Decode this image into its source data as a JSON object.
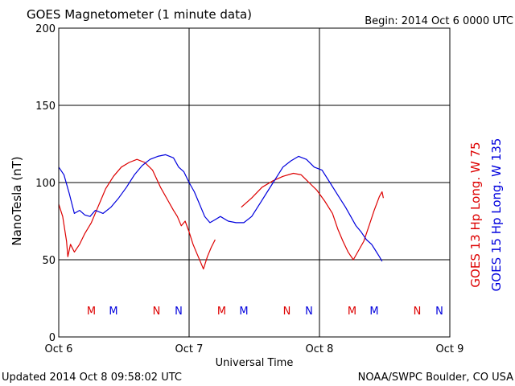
{
  "chart_data": {
    "type": "line",
    "title": "GOES Magnetometer (1 minute data)",
    "begin_label": "Begin:  2014 Oct 6 0000 UTC",
    "ylabel": "NanoTesla (nT)",
    "xlabel": "Universal Time",
    "ylim": [
      0,
      200
    ],
    "y_ticks": [
      "0",
      "50",
      "100",
      "150",
      "200"
    ],
    "xlim": [
      0,
      3
    ],
    "x_ticks": [
      "Oct 6",
      "Oct 7",
      "Oct 8",
      "Oct 9"
    ],
    "grid": true,
    "right_labels": [
      {
        "text": "GOES 13 Hp  Long. W 75",
        "color": "#dd0000"
      },
      {
        "text": "GOES 15 Hp  Long. W 135",
        "color": "#0000dd"
      }
    ],
    "series": [
      {
        "name": "GOES 13 Hp",
        "color": "#dd0000",
        "segments": [
          [
            [
              0.0,
              86
            ],
            [
              0.03,
              78
            ],
            [
              0.06,
              62
            ],
            [
              0.07,
              52
            ],
            [
              0.09,
              60
            ],
            [
              0.12,
              55
            ],
            [
              0.16,
              60
            ],
            [
              0.2,
              67
            ],
            [
              0.25,
              74
            ],
            [
              0.3,
              84
            ],
            [
              0.36,
              96
            ],
            [
              0.42,
              104
            ],
            [
              0.48,
              110
            ],
            [
              0.54,
              113
            ],
            [
              0.6,
              115
            ],
            [
              0.66,
              113
            ],
            [
              0.72,
              108
            ],
            [
              0.78,
              97
            ],
            [
              0.84,
              88
            ],
            [
              0.88,
              82
            ],
            [
              0.91,
              78
            ],
            [
              0.94,
              72
            ],
            [
              0.97,
              75
            ],
            [
              1.0,
              68
            ],
            [
              1.03,
              60
            ],
            [
              1.06,
              54
            ],
            [
              1.09,
              48
            ],
            [
              1.11,
              44
            ],
            [
              1.14,
              52
            ],
            [
              1.17,
              58
            ],
            [
              1.2,
              63
            ]
          ],
          [
            [
              1.4,
              84
            ],
            [
              1.48,
              90
            ],
            [
              1.56,
              97
            ],
            [
              1.64,
              101
            ],
            [
              1.72,
              104
            ],
            [
              1.8,
              106
            ],
            [
              1.86,
              105
            ],
            [
              1.92,
              100
            ],
            [
              1.98,
              95
            ],
            [
              2.04,
              88
            ],
            [
              2.1,
              80
            ],
            [
              2.14,
              70
            ],
            [
              2.18,
              62
            ],
            [
              2.22,
              55
            ],
            [
              2.26,
              50
            ],
            [
              2.3,
              56
            ],
            [
              2.34,
              62
            ],
            [
              2.38,
              72
            ],
            [
              2.42,
              82
            ],
            [
              2.46,
              91
            ],
            [
              2.48,
              94
            ],
            [
              2.49,
              90
            ]
          ]
        ]
      },
      {
        "name": "GOES 15 Hp",
        "color": "#0000dd",
        "segments": [
          [
            [
              0.0,
              110
            ],
            [
              0.04,
              105
            ],
            [
              0.08,
              93
            ],
            [
              0.12,
              80
            ],
            [
              0.16,
              82
            ],
            [
              0.2,
              79
            ],
            [
              0.24,
              78
            ],
            [
              0.28,
              82
            ],
            [
              0.34,
              80
            ],
            [
              0.4,
              84
            ],
            [
              0.46,
              90
            ],
            [
              0.52,
              97
            ],
            [
              0.58,
              105
            ],
            [
              0.64,
              111
            ],
            [
              0.7,
              115
            ],
            [
              0.76,
              117
            ],
            [
              0.82,
              118
            ],
            [
              0.88,
              116
            ],
            [
              0.92,
              110
            ],
            [
              0.96,
              107
            ],
            [
              1.0,
              100
            ],
            [
              1.04,
              94
            ],
            [
              1.08,
              86
            ],
            [
              1.12,
              78
            ],
            [
              1.16,
              74
            ],
            [
              1.2,
              76
            ],
            [
              1.24,
              78
            ],
            [
              1.3,
              75
            ],
            [
              1.36,
              74
            ],
            [
              1.42,
              74
            ],
            [
              1.48,
              78
            ],
            [
              1.54,
              86
            ],
            [
              1.6,
              94
            ],
            [
              1.66,
              102
            ],
            [
              1.72,
              110
            ],
            [
              1.78,
              114
            ],
            [
              1.84,
              117
            ],
            [
              1.9,
              115
            ],
            [
              1.96,
              110
            ],
            [
              2.02,
              108
            ],
            [
              2.08,
              100
            ],
            [
              2.14,
              92
            ],
            [
              2.2,
              84
            ],
            [
              2.24,
              78
            ],
            [
              2.28,
              72
            ],
            [
              2.32,
              68
            ],
            [
              2.36,
              63
            ],
            [
              2.4,
              60
            ],
            [
              2.43,
              56
            ],
            [
              2.46,
              52
            ],
            [
              2.48,
              49
            ]
          ]
        ]
      }
    ],
    "markers": [
      {
        "label": "M",
        "x": 0.25,
        "color": "#dd0000"
      },
      {
        "label": "M",
        "x": 0.42,
        "color": "#0000dd"
      },
      {
        "label": "N",
        "x": 0.75,
        "color": "#dd0000"
      },
      {
        "label": "N",
        "x": 0.92,
        "color": "#0000dd"
      },
      {
        "label": "M",
        "x": 1.25,
        "color": "#dd0000"
      },
      {
        "label": "M",
        "x": 1.42,
        "color": "#0000dd"
      },
      {
        "label": "N",
        "x": 1.75,
        "color": "#dd0000"
      },
      {
        "label": "N",
        "x": 1.92,
        "color": "#0000dd"
      },
      {
        "label": "M",
        "x": 2.25,
        "color": "#dd0000"
      },
      {
        "label": "M",
        "x": 2.42,
        "color": "#0000dd"
      },
      {
        "label": "N",
        "x": 2.75,
        "color": "#dd0000"
      },
      {
        "label": "N",
        "x": 2.92,
        "color": "#0000dd"
      }
    ]
  },
  "footer": {
    "updated": "Updated 2014 Oct  8 09:58:02 UTC",
    "source": "NOAA/SWPC Boulder, CO USA"
  }
}
